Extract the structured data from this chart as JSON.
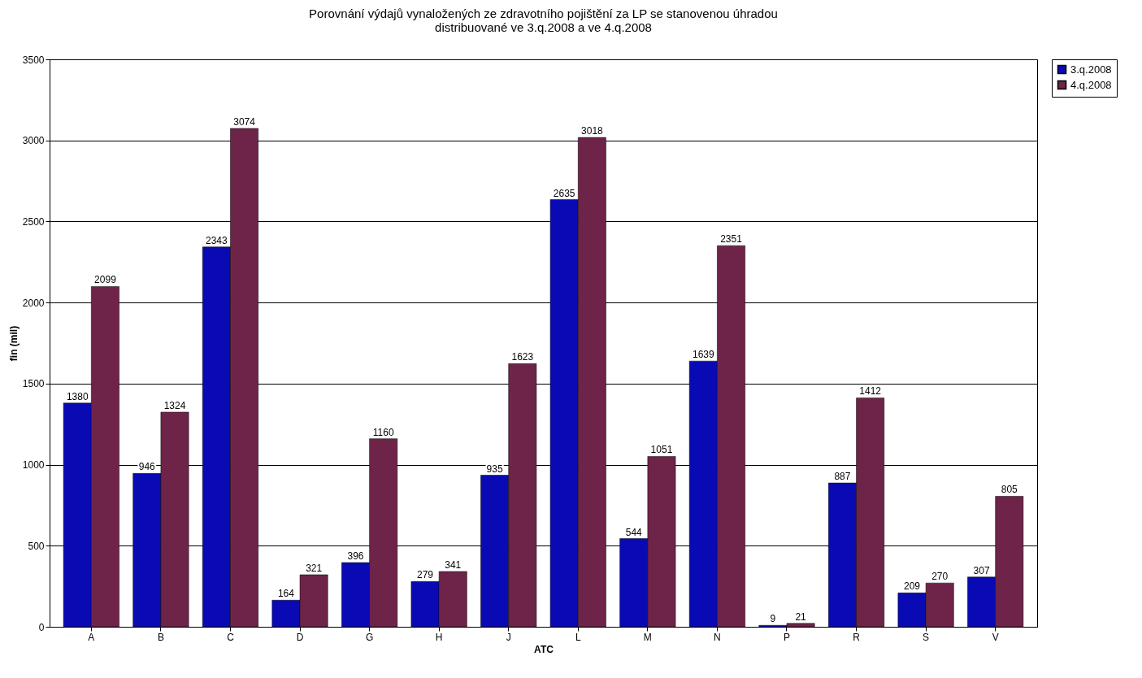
{
  "chart_data": {
    "type": "bar",
    "title": "Porovnání výdajů vynaložených ze zdravotního pojištění za LP se stanovenou úhradou\ndistribuované ve 3.q.2008 a ve 4.q.2008",
    "xlabel": "ATC",
    "ylabel": "fin (mil)",
    "categories": [
      "A",
      "B",
      "C",
      "D",
      "G",
      "H",
      "J",
      "L",
      "M",
      "N",
      "P",
      "R",
      "S",
      "V"
    ],
    "series": [
      {
        "name": "3.q.2008",
        "color": "#0a0ab4",
        "values": [
          1380,
          946,
          2343,
          164,
          396,
          279,
          935,
          2635,
          544,
          1639,
          9,
          887,
          209,
          307
        ]
      },
      {
        "name": "4.q.2008",
        "color": "#6e2448",
        "values": [
          2099,
          1324,
          3074,
          321,
          1160,
          341,
          1623,
          3018,
          1051,
          2351,
          21,
          1412,
          270,
          805
        ]
      }
    ],
    "ylim": [
      0,
      3500
    ],
    "yticks": [
      0,
      500,
      1000,
      1500,
      2000,
      2500,
      3000,
      3500
    ],
    "grid": "y",
    "legend": "right",
    "data_labels": true
  }
}
